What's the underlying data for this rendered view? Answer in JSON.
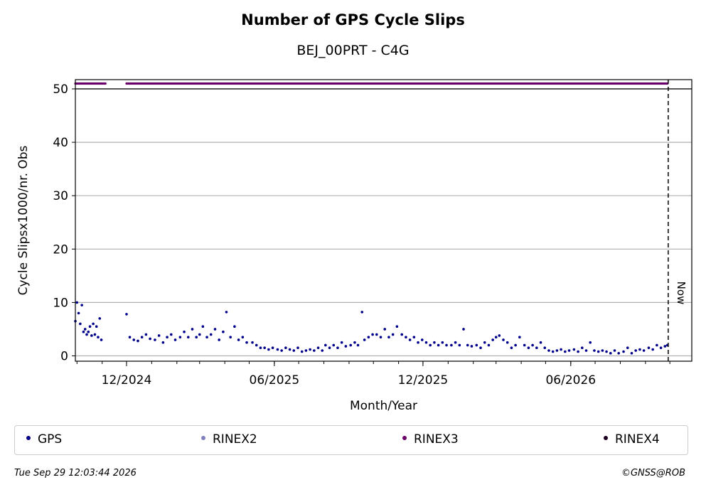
{
  "chart_data": {
    "type": "scatter",
    "title": "Number of GPS Cycle Slips",
    "subtitle": "BEJ_00PRT - C4G",
    "xlabel": "Month/Year",
    "ylabel": "Cycle Slipsx1000/nr. Obs",
    "ylim": [
      0,
      51
    ],
    "xlim": [
      "2024-09-29",
      "2026-10-28"
    ],
    "yticks": [
      0,
      10,
      20,
      30,
      40,
      50
    ],
    "xticks": [
      "12/2024",
      "06/2025",
      "12/2025",
      "06/2026"
    ],
    "grid": "horizontal",
    "now_marker": {
      "label": "Now",
      "date": "2026-09-29"
    },
    "legend_position": "bottom",
    "series": [
      {
        "name": "GPS",
        "color": "#00008b",
        "points": [
          [
            "2024-09-29",
            6.5
          ],
          [
            "2024-10-01",
            10.0
          ],
          [
            "2024-10-03",
            8.0
          ],
          [
            "2024-10-05",
            6.0
          ],
          [
            "2024-10-07",
            9.5
          ],
          [
            "2024-10-09",
            4.5
          ],
          [
            "2024-10-11",
            5.0
          ],
          [
            "2024-10-13",
            4.0
          ],
          [
            "2024-10-15",
            4.5
          ],
          [
            "2024-10-17",
            5.5
          ],
          [
            "2024-10-19",
            3.8
          ],
          [
            "2024-10-21",
            6.0
          ],
          [
            "2024-10-23",
            4.0
          ],
          [
            "2024-10-25",
            5.5
          ],
          [
            "2024-10-27",
            3.5
          ],
          [
            "2024-10-29",
            7.0
          ],
          [
            "2024-10-31",
            3.0
          ],
          [
            "2024-12-01",
            7.8
          ],
          [
            "2024-12-05",
            3.5
          ],
          [
            "2024-12-10",
            3.0
          ],
          [
            "2024-12-15",
            2.8
          ],
          [
            "2024-12-20",
            3.5
          ],
          [
            "2024-12-25",
            4.0
          ],
          [
            "2024-12-30",
            3.2
          ],
          [
            "2025-01-05",
            3.0
          ],
          [
            "2025-01-10",
            3.8
          ],
          [
            "2025-01-15",
            2.5
          ],
          [
            "2025-01-20",
            3.5
          ],
          [
            "2025-01-25",
            4.0
          ],
          [
            "2025-01-30",
            3.0
          ],
          [
            "2025-02-05",
            3.5
          ],
          [
            "2025-02-10",
            4.5
          ],
          [
            "2025-02-15",
            3.5
          ],
          [
            "2025-02-20",
            5.0
          ],
          [
            "2025-02-25",
            3.5
          ],
          [
            "2025-03-01",
            4.0
          ],
          [
            "2025-03-05",
            5.5
          ],
          [
            "2025-03-10",
            3.5
          ],
          [
            "2025-03-15",
            4.0
          ],
          [
            "2025-03-20",
            5.0
          ],
          [
            "2025-03-25",
            3.0
          ],
          [
            "2025-03-30",
            4.5
          ],
          [
            "2025-04-03",
            8.2
          ],
          [
            "2025-04-08",
            3.5
          ],
          [
            "2025-04-13",
            5.5
          ],
          [
            "2025-04-18",
            3.0
          ],
          [
            "2025-04-23",
            3.5
          ],
          [
            "2025-04-28",
            2.5
          ],
          [
            "2025-05-05",
            2.5
          ],
          [
            "2025-05-10",
            2.0
          ],
          [
            "2025-05-15",
            1.5
          ],
          [
            "2025-05-20",
            1.5
          ],
          [
            "2025-05-25",
            1.2
          ],
          [
            "2025-05-30",
            1.5
          ],
          [
            "2025-06-05",
            1.2
          ],
          [
            "2025-06-10",
            1.0
          ],
          [
            "2025-06-15",
            1.5
          ],
          [
            "2025-06-20",
            1.2
          ],
          [
            "2025-06-25",
            1.0
          ],
          [
            "2025-06-30",
            1.5
          ],
          [
            "2025-07-05",
            0.8
          ],
          [
            "2025-07-10",
            1.0
          ],
          [
            "2025-07-15",
            1.2
          ],
          [
            "2025-07-20",
            1.0
          ],
          [
            "2025-07-25",
            1.5
          ],
          [
            "2025-07-30",
            1.0
          ],
          [
            "2025-08-03",
            2.0
          ],
          [
            "2025-08-08",
            1.5
          ],
          [
            "2025-08-13",
            2.0
          ],
          [
            "2025-08-18",
            1.5
          ],
          [
            "2025-08-23",
            2.5
          ],
          [
            "2025-08-28",
            1.8
          ],
          [
            "2025-09-03",
            2.0
          ],
          [
            "2025-09-08",
            2.5
          ],
          [
            "2025-09-12",
            2.0
          ],
          [
            "2025-09-17",
            8.2
          ],
          [
            "2025-09-20",
            3.0
          ],
          [
            "2025-09-25",
            3.5
          ],
          [
            "2025-09-30",
            4.0
          ],
          [
            "2025-10-05",
            4.0
          ],
          [
            "2025-10-10",
            3.5
          ],
          [
            "2025-10-15",
            5.0
          ],
          [
            "2025-10-20",
            3.5
          ],
          [
            "2025-10-25",
            4.0
          ],
          [
            "2025-10-30",
            5.5
          ],
          [
            "2025-11-05",
            4.0
          ],
          [
            "2025-11-10",
            3.5
          ],
          [
            "2025-11-15",
            3.0
          ],
          [
            "2025-11-20",
            3.5
          ],
          [
            "2025-11-25",
            2.5
          ],
          [
            "2025-11-30",
            3.0
          ],
          [
            "2025-12-05",
            2.5
          ],
          [
            "2025-12-10",
            2.0
          ],
          [
            "2025-12-15",
            2.5
          ],
          [
            "2025-12-20",
            2.0
          ],
          [
            "2025-12-25",
            2.5
          ],
          [
            "2025-12-30",
            2.0
          ],
          [
            "2026-01-05",
            2.0
          ],
          [
            "2026-01-10",
            2.5
          ],
          [
            "2026-01-15",
            2.0
          ],
          [
            "2026-01-20",
            5.0
          ],
          [
            "2026-01-25",
            2.0
          ],
          [
            "2026-01-30",
            1.8
          ],
          [
            "2026-02-05",
            2.0
          ],
          [
            "2026-02-10",
            1.5
          ],
          [
            "2026-02-15",
            2.5
          ],
          [
            "2026-02-20",
            2.0
          ],
          [
            "2026-02-25",
            3.0
          ],
          [
            "2026-03-01",
            3.5
          ],
          [
            "2026-03-05",
            3.8
          ],
          [
            "2026-03-10",
            3.0
          ],
          [
            "2026-03-15",
            2.5
          ],
          [
            "2026-03-20",
            1.5
          ],
          [
            "2026-03-25",
            2.0
          ],
          [
            "2026-03-30",
            3.5
          ],
          [
            "2026-04-05",
            2.0
          ],
          [
            "2026-04-10",
            1.5
          ],
          [
            "2026-04-15",
            2.0
          ],
          [
            "2026-04-20",
            1.5
          ],
          [
            "2026-04-25",
            2.5
          ],
          [
            "2026-04-30",
            1.5
          ],
          [
            "2026-05-05",
            1.0
          ],
          [
            "2026-05-10",
            0.8
          ],
          [
            "2026-05-15",
            1.0
          ],
          [
            "2026-05-20",
            1.2
          ],
          [
            "2026-05-25",
            0.8
          ],
          [
            "2026-05-30",
            1.0
          ],
          [
            "2026-06-05",
            1.2
          ],
          [
            "2026-06-10",
            0.8
          ],
          [
            "2026-06-15",
            1.5
          ],
          [
            "2026-06-20",
            1.0
          ],
          [
            "2026-06-25",
            2.5
          ],
          [
            "2026-06-30",
            1.0
          ],
          [
            "2026-07-05",
            0.8
          ],
          [
            "2026-07-10",
            1.0
          ],
          [
            "2026-07-15",
            0.8
          ],
          [
            "2026-07-20",
            0.5
          ],
          [
            "2026-07-25",
            1.0
          ],
          [
            "2026-07-30",
            0.5
          ],
          [
            "2026-08-05",
            0.8
          ],
          [
            "2026-08-10",
            1.5
          ],
          [
            "2026-08-15",
            0.5
          ],
          [
            "2026-08-20",
            1.0
          ],
          [
            "2026-08-25",
            1.2
          ],
          [
            "2026-08-30",
            1.0
          ],
          [
            "2026-09-05",
            1.5
          ],
          [
            "2026-09-10",
            1.2
          ],
          [
            "2026-09-15",
            2.0
          ],
          [
            "2026-09-20",
            1.5
          ],
          [
            "2026-09-25",
            1.8
          ],
          [
            "2026-09-28",
            2.0
          ]
        ]
      },
      {
        "name": "RINEX2",
        "color": "#8080c0",
        "points": []
      },
      {
        "name": "RINEX3",
        "color": "#6a006a",
        "availability_y": 51,
        "ranges": [
          [
            "2024-09-29",
            "2024-11-05"
          ],
          [
            "2024-12-01",
            "2026-09-28"
          ]
        ]
      },
      {
        "name": "RINEX4",
        "color": "#200020",
        "points": []
      }
    ]
  },
  "footer": {
    "timestamp": "Tue Sep 29 12:03:44 2026",
    "credit": "©GNSS@ROB"
  }
}
